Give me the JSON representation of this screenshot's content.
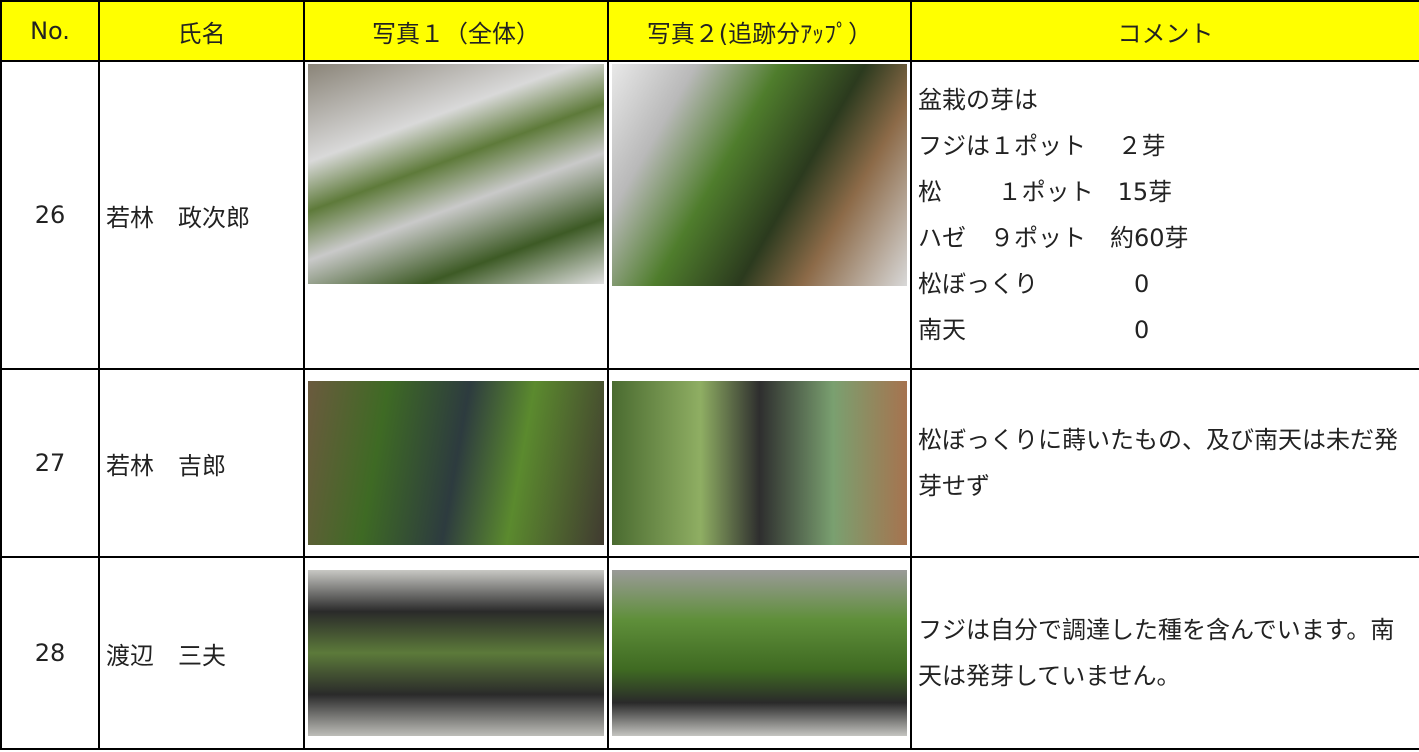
{
  "table": {
    "header": [
      "No.",
      "氏名",
      "写真１（全体）",
      "写真２(追跡分ｱｯﾌﾟ）",
      "コメント"
    ],
    "rows": [
      {
        "no": "26",
        "name": "若林　政次郎",
        "comment": [
          "盆栽の芽は",
          "フジは１ポット　 ２芽",
          "松　　 １ポット　15芽",
          "ハゼ　９ポット　約60芽",
          "松ぼっくり　　　　0",
          "南天　　　　　　　0"
        ]
      },
      {
        "no": "27",
        "name": "若林　吉郎",
        "comment": [
          "松ぼっくりに蒔いたもの、及び南天は未だ発芽せず"
        ]
      },
      {
        "no": "28",
        "name": "渡辺　三夫",
        "comment": [
          "フジは自分で調達した種を含んでいます。南天は発芽していません。"
        ]
      }
    ]
  }
}
